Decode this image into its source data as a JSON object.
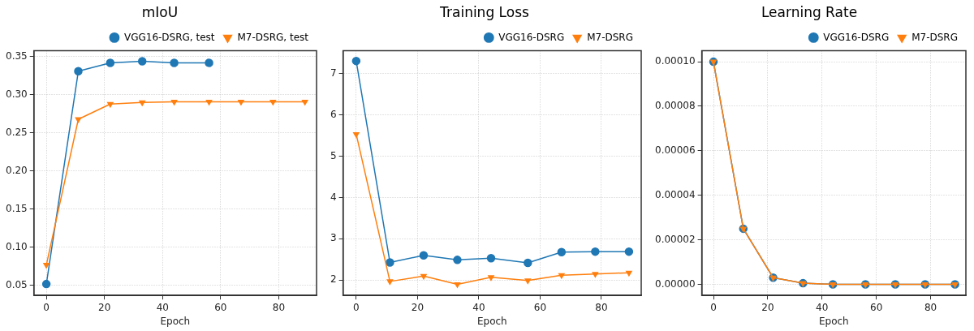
{
  "chart_data": [
    {
      "type": "line",
      "title": "mIoU",
      "xlabel": "Epoch",
      "x": [
        0,
        11,
        22,
        33,
        44,
        56,
        67,
        78,
        89
      ],
      "xlim": [
        -4.3,
        93
      ],
      "xticks": [
        0,
        20,
        40,
        60,
        80
      ],
      "ylim": [
        0.037,
        0.358
      ],
      "yticks": [
        {
          "value": 0.05,
          "label": "0.05"
        },
        {
          "value": 0.1,
          "label": "0.10"
        },
        {
          "value": 0.15,
          "label": "0.15"
        },
        {
          "value": 0.2,
          "label": "0.20"
        },
        {
          "value": 0.25,
          "label": "0.25"
        },
        {
          "value": 0.3,
          "label": "0.30"
        },
        {
          "value": 0.35,
          "label": "0.35"
        }
      ],
      "grid": true,
      "legend": "top right",
      "line_style": "solid",
      "series": [
        {
          "name": "VGG16-DSRG, test",
          "color": "#1f77b4",
          "marker": "circle",
          "values": [
            0.052,
            0.331,
            0.342,
            0.344,
            0.342,
            0.342,
            null,
            null,
            null
          ]
        },
        {
          "name": "M7-DSRG, test",
          "color": "#ff7f0e",
          "marker": "triangle",
          "values": [
            0.077,
            0.268,
            0.288,
            0.29,
            0.291,
            0.291,
            0.291,
            0.291,
            0.291
          ]
        }
      ]
    },
    {
      "type": "line",
      "title": "Training Loss",
      "xlabel": "Epoch",
      "x": [
        0,
        11,
        22,
        33,
        44,
        56,
        67,
        78,
        89
      ],
      "xlim": [
        -4.3,
        93
      ],
      "xticks": [
        0,
        20,
        40,
        60,
        80
      ],
      "ylim": [
        1.63,
        7.55
      ],
      "yticks": [
        2,
        3,
        4,
        5,
        6,
        7
      ],
      "grid": true,
      "legend": "top right",
      "line_style": "solid",
      "series": [
        {
          "name": "VGG16-DSRG",
          "color": "#1f77b4",
          "marker": "circle",
          "values": [
            7.3,
            2.43,
            2.6,
            2.49,
            2.53,
            2.42,
            2.68,
            2.69,
            2.69
          ]
        },
        {
          "name": "M7-DSRG",
          "color": "#ff7f0e",
          "marker": "triangle",
          "values": [
            5.53,
            1.97,
            2.1,
            1.9,
            2.07,
            1.99,
            2.12,
            2.15,
            2.18
          ]
        }
      ]
    },
    {
      "type": "line",
      "title": "Learning Rate",
      "xlabel": "Epoch",
      "x": [
        0,
        11,
        22,
        33,
        44,
        56,
        67,
        78,
        89
      ],
      "xlim": [
        -4.3,
        93
      ],
      "xticks": [
        0,
        20,
        40,
        60,
        80
      ],
      "ylim": [
        -5e-06,
        0.000105
      ],
      "yticks": [
        {
          "value": 0,
          "label": "0.00000"
        },
        {
          "value": 2e-05,
          "label": "0.00002"
        },
        {
          "value": 4e-05,
          "label": "0.00004"
        },
        {
          "value": 6e-05,
          "label": "0.00006"
        },
        {
          "value": 8e-05,
          "label": "0.00008"
        },
        {
          "value": 0.0001,
          "label": "0.00010"
        }
      ],
      "grid": true,
      "legend": "top right",
      "line_style": "solid",
      "series": [
        {
          "name": "VGG16-DSRG",
          "color": "#1f77b4",
          "marker": "circle",
          "values": [
            0.0001,
            2.5e-05,
            3e-06,
            5e-07,
            0,
            0,
            0,
            0,
            0
          ]
        },
        {
          "name": "M7-DSRG",
          "color": "#ff7f0e",
          "marker": "triangle",
          "values": [
            0.0001,
            2.5e-05,
            3e-06,
            5e-07,
            0,
            0,
            0,
            0,
            0
          ]
        }
      ]
    }
  ]
}
